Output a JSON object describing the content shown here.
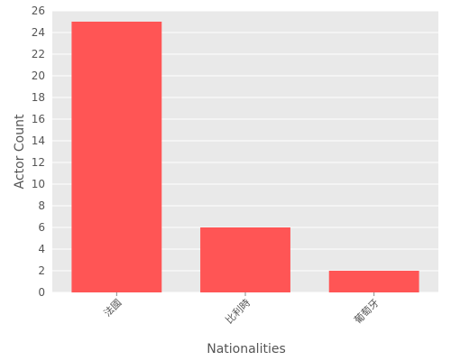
{
  "chart_data": {
    "type": "bar",
    "categories": [
      "法國",
      "比利時",
      "葡萄牙"
    ],
    "values": [
      25,
      6,
      2
    ],
    "title": "",
    "xlabel": "Nationalities",
    "ylabel": "Actor Count",
    "ylim": [
      0,
      26
    ],
    "yticks": [
      0,
      2,
      4,
      6,
      8,
      10,
      12,
      14,
      16,
      18,
      20,
      22,
      24,
      26
    ],
    "grid": true,
    "legend": "none",
    "colors": {
      "bar": "#ff5555",
      "plot_background": "#e9e9e9",
      "grid": "#ffffff",
      "text": "#555555"
    }
  }
}
